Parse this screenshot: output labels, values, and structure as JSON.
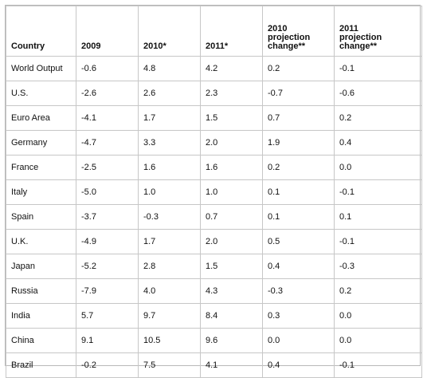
{
  "table": {
    "headers": [
      "Country",
      "2009",
      "2010*",
      "2011*",
      "2010\nprojection\nchange**",
      "2011\nprojection\nchange**"
    ],
    "rows": [
      [
        "World Output",
        "-0.6",
        "4.8",
        "4.2",
        "0.2",
        "-0.1"
      ],
      [
        "U.S.",
        "-2.6",
        "2.6",
        "2.3",
        "-0.7",
        "-0.6"
      ],
      [
        "Euro Area",
        "-4.1",
        "1.7",
        "1.5",
        "0.7",
        "0.2"
      ],
      [
        "Germany",
        "-4.7",
        "3.3",
        "2.0",
        "1.9",
        "0.4"
      ],
      [
        "France",
        "-2.5",
        "1.6",
        "1.6",
        "0.2",
        "0.0"
      ],
      [
        "Italy",
        "-5.0",
        "1.0",
        "1.0",
        "0.1",
        "-0.1"
      ],
      [
        "Spain",
        "-3.7",
        "-0.3",
        "0.7",
        "0.1",
        "0.1"
      ],
      [
        "U.K.",
        "-4.9",
        "1.7",
        "2.0",
        "0.5",
        "-0.1"
      ],
      [
        "Japan",
        "-5.2",
        "2.8",
        "1.5",
        "0.4",
        "-0.3"
      ],
      [
        "Russia",
        "-7.9",
        "4.0",
        "4.3",
        "-0.3",
        "0.2"
      ],
      [
        "India",
        "5.7",
        "9.7",
        "8.4",
        "0.3",
        "0.0"
      ],
      [
        "China",
        "9.1",
        "10.5",
        "9.6",
        "0.0",
        "0.0"
      ],
      [
        "Brazil",
        "-0.2",
        "7.5",
        "4.1",
        "0.4",
        "-0.1"
      ]
    ]
  }
}
